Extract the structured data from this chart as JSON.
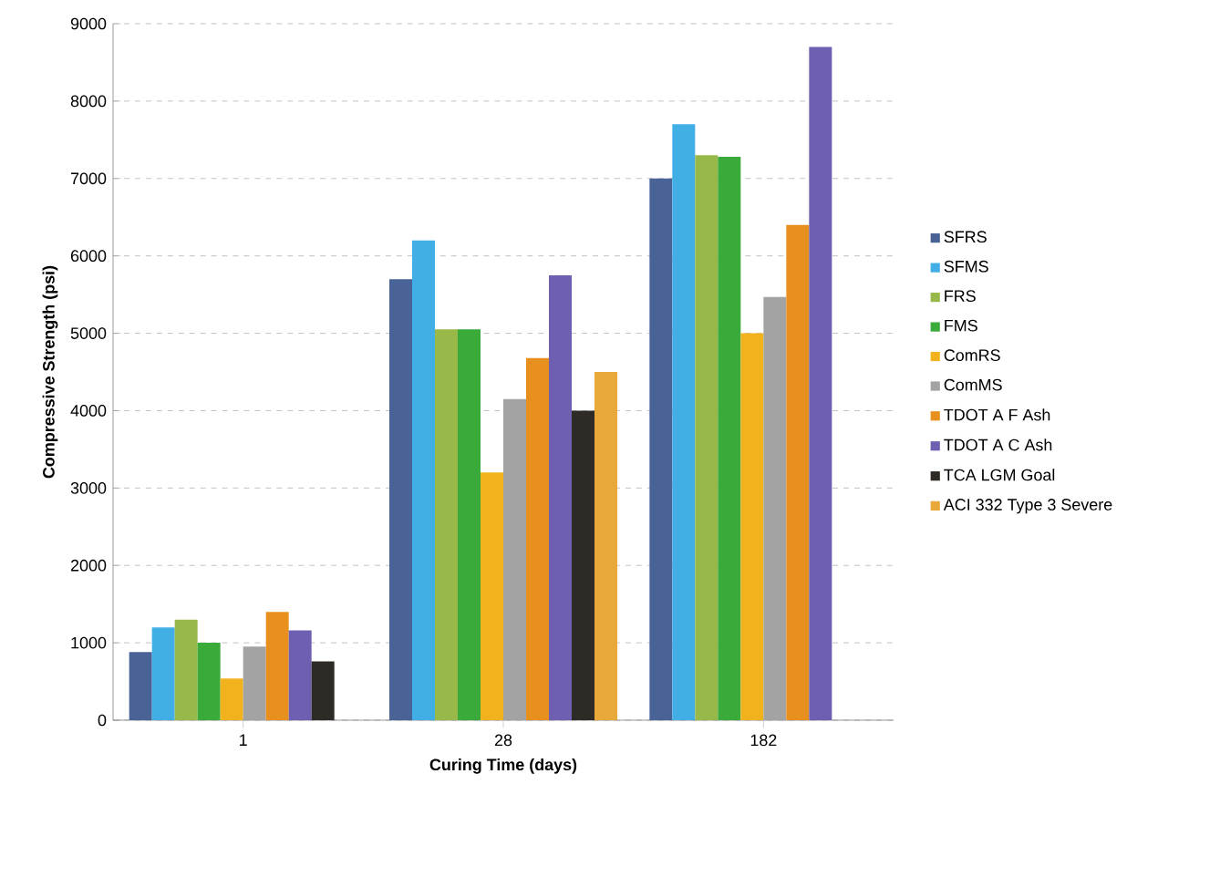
{
  "chart_data": {
    "type": "bar",
    "xlabel": "Curing Time (days)",
    "ylabel": "Compressive Strength (psi)",
    "categories": [
      "1",
      "28",
      "182"
    ],
    "ylim": [
      0,
      9000
    ],
    "yticks": [
      0,
      1000,
      2000,
      3000,
      4000,
      5000,
      6000,
      7000,
      8000,
      9000
    ],
    "grid": "y",
    "legend": "right",
    "series": [
      {
        "name": "SFRS",
        "color": "#4a6396",
        "values": [
          880,
          5700,
          7000
        ]
      },
      {
        "name": "SFMS",
        "color": "#41aee6",
        "values": [
          1200,
          6200,
          7700
        ]
      },
      {
        "name": "FRS",
        "color": "#98b94a",
        "values": [
          1300,
          5050,
          7300
        ]
      },
      {
        "name": "FMS",
        "color": "#3aaa3a",
        "values": [
          1000,
          5050,
          7280
        ]
      },
      {
        "name": "ComRS",
        "color": "#f2b21e",
        "values": [
          540,
          3200,
          5000
        ]
      },
      {
        "name": "ComMS",
        "color": "#a3a3a3",
        "values": [
          950,
          4150,
          5470
        ]
      },
      {
        "name": "TDOT A F Ash",
        "color": "#e8901e",
        "values": [
          1400,
          4680,
          6400
        ]
      },
      {
        "name": "TDOT A C Ash",
        "color": "#6f5fb0",
        "values": [
          1160,
          5750,
          8700
        ]
      },
      {
        "name": "TCA LGM Goal",
        "color": "#2e2a26",
        "values": [
          760,
          4000,
          null
        ]
      },
      {
        "name": "ACI 332 Type 3 Severe",
        "color": "#e9a93a",
        "values": [
          null,
          4500,
          null
        ]
      }
    ]
  }
}
